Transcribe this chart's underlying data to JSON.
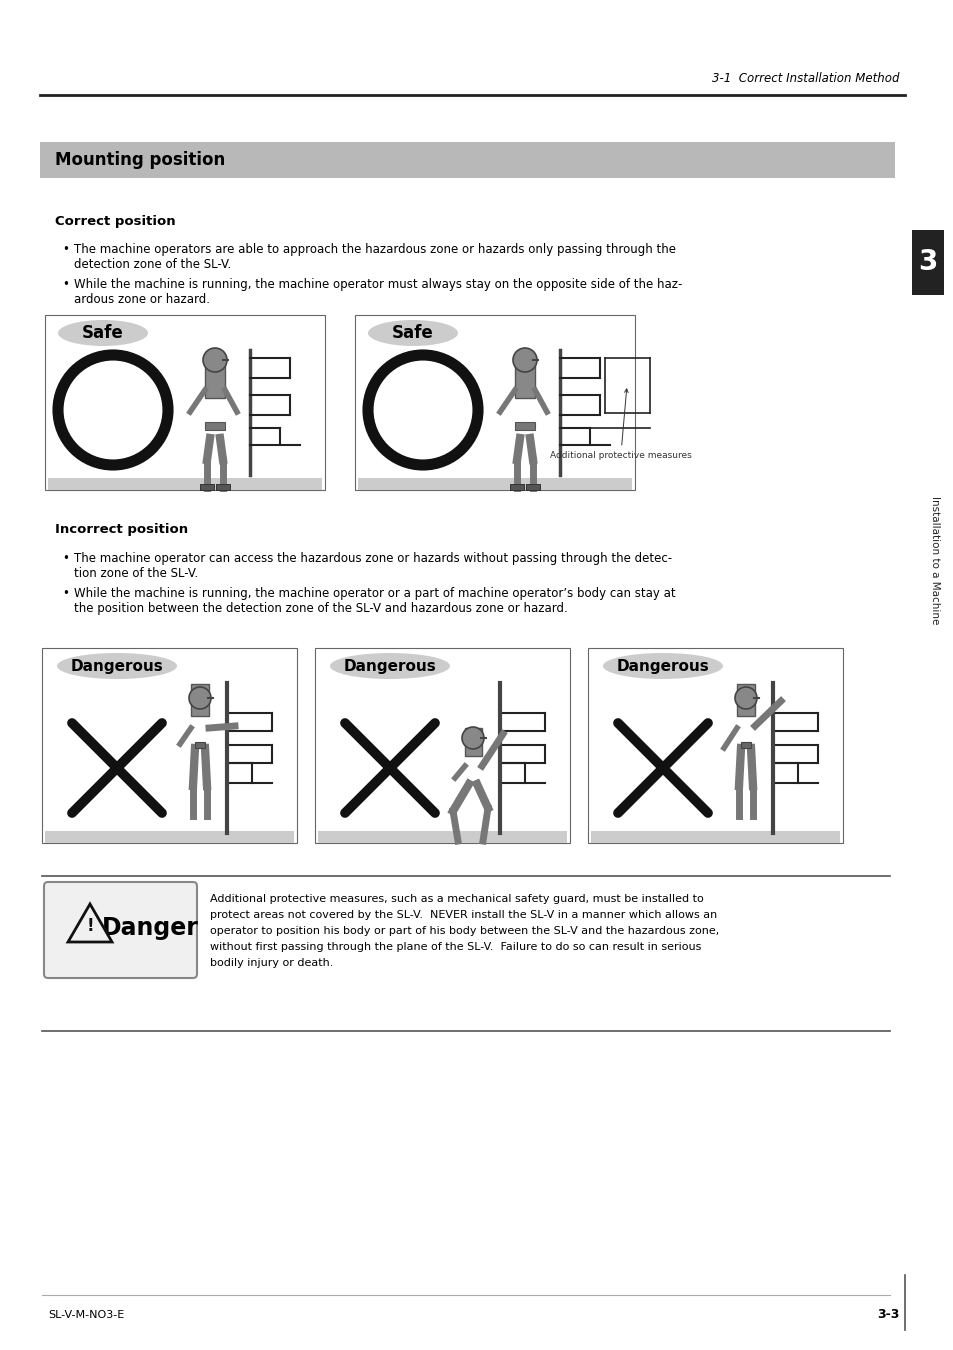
{
  "page_header_right": "3-1  Correct Installation Method",
  "section_title": "Mounting position",
  "section_bg": "#b0b0b0",
  "correct_title": "Correct position",
  "safe_label": "Safe",
  "additional_label": "Additional protective measures",
  "incorrect_title": "Incorrect position",
  "dangerous_label": "Dangerous",
  "danger_text_line1": "Additional protective measures, such as a mechanical safety guard, must be installed to",
  "danger_text_line2": "protect areas not covered by the SL-V.  NEVER install the SL-V in a manner which allows an",
  "danger_text_line3": "operator to position his body or part of his body between the SL-V and the hazardous zone,",
  "danger_text_line4": "without first passing through the plane of the SL-V.  Failure to do so can result in serious",
  "danger_text_line5": "bodily injury or death.",
  "footer_left": "SL-V-M-NO3-E",
  "footer_right": "3-3",
  "sidebar_text": "Installation to a Machine",
  "sidebar_num": "3",
  "bg_color": "#ffffff",
  "text_color": "#000000",
  "gray_dark": "#555555",
  "gray_mid": "#888888",
  "gray_light": "#cccccc",
  "gray_lighter": "#dddddd",
  "circle_color": "#111111"
}
